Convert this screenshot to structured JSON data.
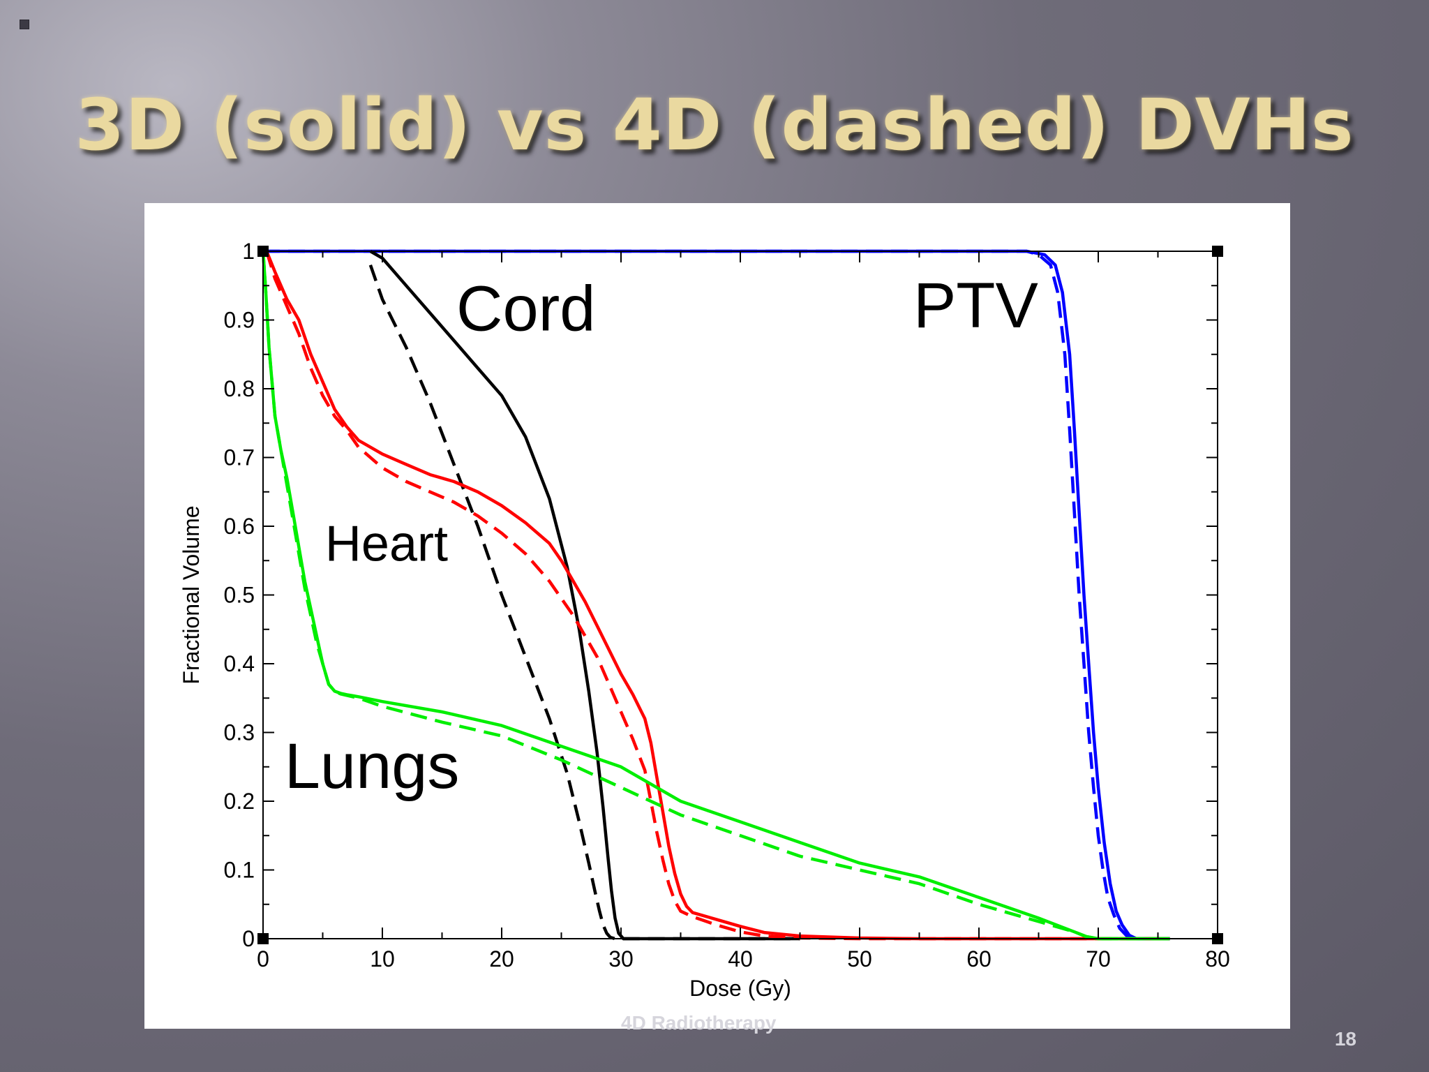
{
  "slide": {
    "title": "3D (solid) vs 4D (dashed) DVHs",
    "footer": "4D Radiotherapy",
    "page_number": "18"
  },
  "chart_data": {
    "type": "line",
    "xlabel": "Dose (Gy)",
    "ylabel": "Fractional Volume",
    "xlim": [
      0,
      80
    ],
    "ylim": [
      0,
      1
    ],
    "xticks": [
      0,
      10,
      20,
      30,
      40,
      50,
      60,
      70,
      80
    ],
    "yticks": [
      0,
      0.1,
      0.2,
      0.3,
      0.4,
      0.5,
      0.6,
      0.7,
      0.8,
      0.9,
      1
    ],
    "xtick_labels": [
      "0",
      "10",
      "20",
      "30",
      "40",
      "50",
      "60",
      "70",
      "80"
    ],
    "ytick_labels": [
      "0",
      "0.1",
      "0.2",
      "0.3",
      "0.4",
      "0.5",
      "0.6",
      "0.7",
      "0.8",
      "0.9",
      "1"
    ],
    "grid": false,
    "annotations": [
      {
        "text": "Cord",
        "x": 16.2,
        "y": 0.915
      },
      {
        "text": "PTV",
        "x": 54.5,
        "y": 0.92
      },
      {
        "text": "Heart",
        "x": 5.2,
        "y": 0.58
      },
      {
        "text": "Lungs",
        "x": 1.8,
        "y": 0.25
      }
    ],
    "series": [
      {
        "color": "#0000ff",
        "dash": false,
        "x": [
          0,
          64,
          65.5,
          66.4,
          67,
          67.6,
          68,
          68.4,
          68.8,
          69.2,
          69.6,
          70,
          70.5,
          71,
          71.5,
          72,
          72.6,
          73.2,
          76
        ],
        "y": [
          1,
          1,
          0.995,
          0.98,
          0.94,
          0.85,
          0.74,
          0.62,
          0.5,
          0.4,
          0.3,
          0.22,
          0.14,
          0.08,
          0.04,
          0.02,
          0.005,
          0,
          0
        ]
      },
      {
        "color": "#0000ff",
        "dash": true,
        "x": [
          0,
          64,
          65,
          66,
          66.6,
          67.2,
          67.6,
          68,
          68.4,
          68.8,
          69.2,
          69.6,
          70,
          70.4,
          70.8,
          71.3,
          71.8,
          72.4,
          73,
          76
        ],
        "y": [
          1,
          1,
          0.995,
          0.98,
          0.94,
          0.85,
          0.74,
          0.62,
          0.5,
          0.4,
          0.3,
          0.22,
          0.15,
          0.1,
          0.06,
          0.035,
          0.015,
          0.004,
          0,
          0
        ]
      },
      {
        "color": "#000000",
        "dash": false,
        "x": [
          9,
          10,
          12,
          14,
          16,
          18,
          20,
          22,
          24,
          25.5,
          26.5,
          27.3,
          28,
          28.5,
          28.9,
          29.2,
          29.5,
          29.8,
          30.2,
          45
        ],
        "y": [
          1,
          0.99,
          0.95,
          0.91,
          0.87,
          0.83,
          0.79,
          0.73,
          0.64,
          0.54,
          0.45,
          0.36,
          0.27,
          0.19,
          0.12,
          0.07,
          0.03,
          0.008,
          0,
          0
        ]
      },
      {
        "color": "#000000",
        "dash": true,
        "x": [
          9,
          10,
          12,
          14,
          16,
          18,
          20,
          22,
          24,
          25.5,
          26.5,
          27.3,
          27.8,
          28.2,
          28.5,
          28.8,
          29.1,
          29.5,
          45
        ],
        "y": [
          0.98,
          0.93,
          0.86,
          0.78,
          0.69,
          0.6,
          0.5,
          0.41,
          0.32,
          0.24,
          0.17,
          0.11,
          0.07,
          0.04,
          0.02,
          0.008,
          0.002,
          0,
          0
        ]
      },
      {
        "color": "#ff0000",
        "dash": false,
        "x": [
          0.3,
          1,
          2,
          3,
          4,
          5,
          6,
          7,
          8,
          10,
          12,
          14,
          16,
          18,
          20,
          22,
          24,
          25,
          26,
          27,
          28,
          29,
          30,
          31,
          32,
          32.5,
          33,
          33.5,
          34,
          34.5,
          35,
          35.5,
          36,
          38,
          40,
          42,
          45,
          50,
          55,
          60,
          65,
          70,
          76
        ],
        "y": [
          1,
          0.97,
          0.93,
          0.9,
          0.85,
          0.81,
          0.77,
          0.745,
          0.725,
          0.705,
          0.69,
          0.675,
          0.665,
          0.65,
          0.63,
          0.605,
          0.575,
          0.55,
          0.52,
          0.49,
          0.455,
          0.42,
          0.385,
          0.355,
          0.32,
          0.285,
          0.235,
          0.185,
          0.135,
          0.095,
          0.065,
          0.047,
          0.038,
          0.028,
          0.018,
          0.009,
          0.004,
          0.001,
          0,
          0,
          0,
          0,
          0
        ]
      },
      {
        "color": "#ff0000",
        "dash": true,
        "x": [
          0.3,
          1,
          2,
          3,
          4,
          5,
          6,
          7,
          8,
          10,
          12,
          14,
          16,
          18,
          20,
          22,
          24,
          26,
          28,
          29,
          30,
          31,
          32,
          32.5,
          33,
          33.5,
          34,
          34.5,
          35,
          36,
          38,
          40,
          42,
          45,
          50,
          55,
          60,
          65,
          70,
          76
        ],
        "y": [
          1,
          0.96,
          0.92,
          0.88,
          0.83,
          0.79,
          0.76,
          0.74,
          0.715,
          0.685,
          0.665,
          0.65,
          0.635,
          0.615,
          0.59,
          0.56,
          0.52,
          0.47,
          0.41,
          0.37,
          0.33,
          0.29,
          0.245,
          0.2,
          0.155,
          0.115,
          0.08,
          0.055,
          0.04,
          0.032,
          0.02,
          0.01,
          0.004,
          0.001,
          0,
          0,
          0,
          0,
          0,
          0
        ]
      },
      {
        "color": "#00ee00",
        "dash": false,
        "x": [
          0,
          0.2,
          0.5,
          1,
          1.5,
          2,
          2.5,
          3,
          3.5,
          4,
          4.5,
          5,
          5.5,
          6,
          6.5,
          7,
          8,
          10,
          15,
          20,
          25,
          30,
          35,
          40,
          45,
          50,
          55,
          60,
          65,
          68,
          69,
          70,
          76
        ],
        "y": [
          1,
          0.95,
          0.86,
          0.76,
          0.71,
          0.67,
          0.62,
          0.57,
          0.52,
          0.48,
          0.44,
          0.4,
          0.37,
          0.36,
          0.357,
          0.355,
          0.352,
          0.345,
          0.33,
          0.31,
          0.28,
          0.25,
          0.2,
          0.17,
          0.14,
          0.11,
          0.09,
          0.06,
          0.03,
          0.01,
          0.003,
          0,
          0
        ]
      },
      {
        "color": "#00ee00",
        "dash": true,
        "x": [
          0,
          0.2,
          0.5,
          1,
          1.5,
          2,
          2.5,
          3,
          3.5,
          4,
          4.5,
          5,
          5.5,
          6,
          6.5,
          7,
          8,
          10,
          15,
          20,
          25,
          30,
          35,
          40,
          45,
          50,
          55,
          60,
          65,
          68,
          69,
          70,
          76
        ],
        "y": [
          1,
          0.95,
          0.86,
          0.76,
          0.71,
          0.66,
          0.61,
          0.56,
          0.51,
          0.47,
          0.43,
          0.4,
          0.37,
          0.36,
          0.356,
          0.354,
          0.35,
          0.338,
          0.315,
          0.295,
          0.26,
          0.22,
          0.18,
          0.15,
          0.12,
          0.1,
          0.08,
          0.05,
          0.025,
          0.01,
          0.003,
          0,
          0
        ]
      }
    ]
  }
}
